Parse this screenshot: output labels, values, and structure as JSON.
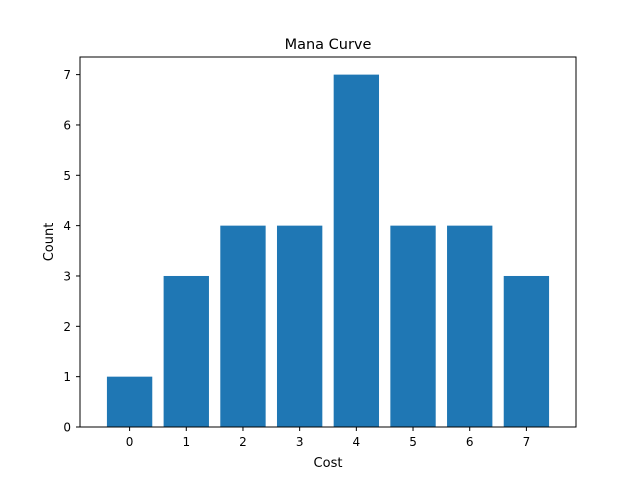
{
  "chart_data": {
    "type": "bar",
    "title": "Mana Curve",
    "xlabel": "Cost",
    "ylabel": "Count",
    "categories": [
      "0",
      "1",
      "2",
      "3",
      "4",
      "5",
      "6",
      "7"
    ],
    "values": [
      1,
      3,
      4,
      4,
      7,
      4,
      4,
      3
    ],
    "ylim": [
      0,
      7.35
    ],
    "yticks": [
      0,
      1,
      2,
      3,
      4,
      5,
      6,
      7
    ],
    "grid": false,
    "bar_color": "#1f77b4"
  }
}
